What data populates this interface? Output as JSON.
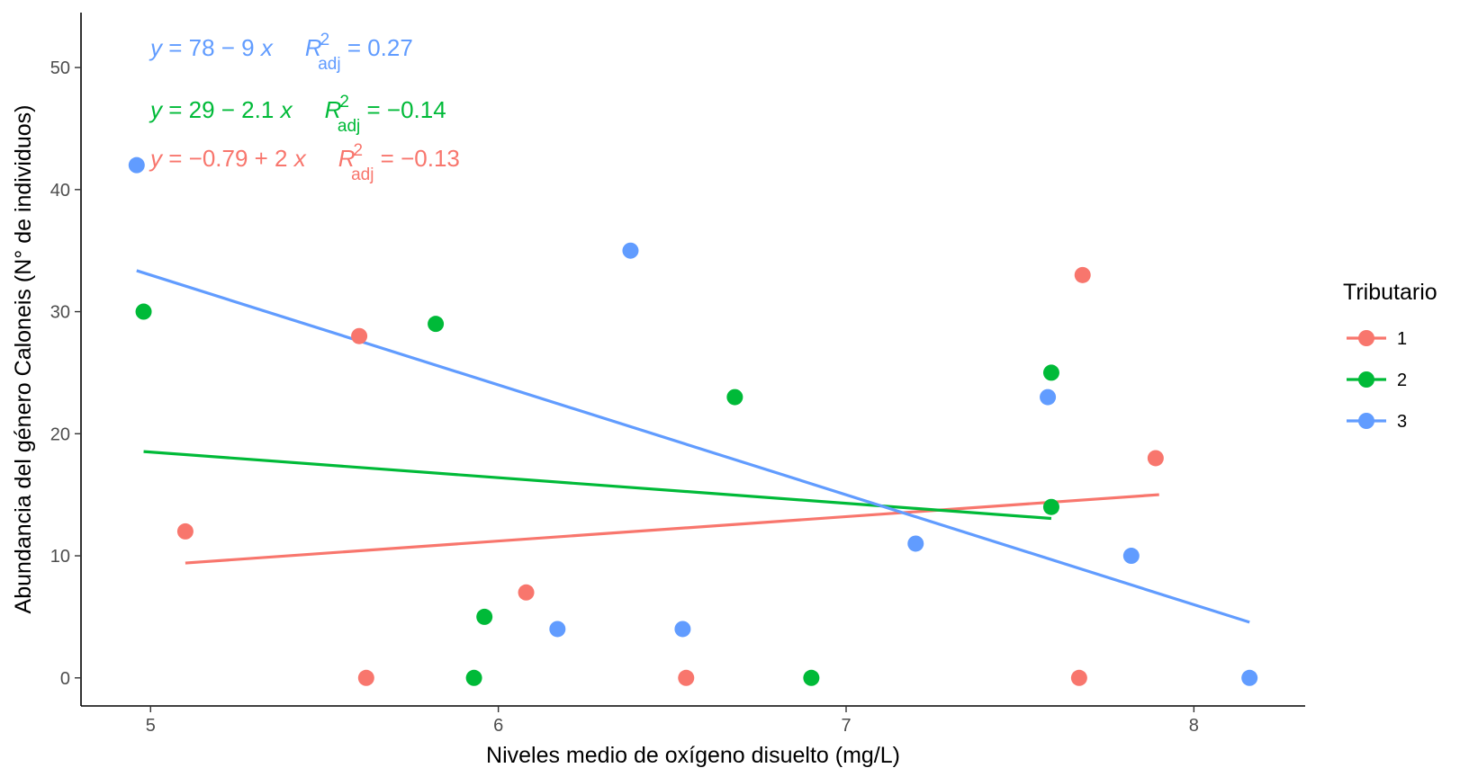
{
  "chart_data": {
    "type": "scatter",
    "xlabel": "Niveles medio de oxígeno disuelto (mg/L)",
    "ylabel": "Abundancia del género Caloneis (N° de individuos)",
    "xlim": [
      4.8,
      8.32
    ],
    "ylim": [
      -2.3,
      54.5
    ],
    "x_ticks": [
      5,
      6,
      7,
      8
    ],
    "y_ticks": [
      0,
      10,
      20,
      30,
      40,
      50
    ],
    "grid": false,
    "legend": {
      "title": "Tributario",
      "position": "right",
      "entries": [
        "1",
        "2",
        "3"
      ]
    },
    "series": [
      {
        "name": "1",
        "color": "#F8766D",
        "points": [
          [
            5.1,
            12
          ],
          [
            5.6,
            28
          ],
          [
            5.62,
            0
          ],
          [
            6.08,
            7
          ],
          [
            6.54,
            0
          ],
          [
            7.68,
            33
          ],
          [
            7.67,
            0
          ],
          [
            7.89,
            18
          ]
        ],
        "fit": {
          "x": [
            5.1,
            7.9
          ],
          "intercept": -0.79,
          "slope": 2
        },
        "equation": {
          "lhs": "y",
          "rhs": " = −0.79 + 2 ",
          "var": "x",
          "r2_symbol": "R",
          "r2_sup": "2",
          "r2_sub": "adj",
          "r2_value": " = −0.13"
        }
      },
      {
        "name": "2",
        "color": "#00BA38",
        "points": [
          [
            4.98,
            30
          ],
          [
            5.82,
            29
          ],
          [
            5.93,
            0
          ],
          [
            5.96,
            5
          ],
          [
            6.68,
            23
          ],
          [
            6.9,
            0
          ],
          [
            7.59,
            25
          ],
          [
            7.59,
            14
          ]
        ],
        "fit": {
          "x": [
            4.98,
            7.59
          ],
          "intercept": 29,
          "slope": -2.1
        },
        "equation": {
          "lhs": "y",
          "rhs": " = 29 − 2.1 ",
          "var": "x",
          "r2_symbol": "R",
          "r2_sup": "2",
          "r2_sub": "adj",
          "r2_value": " = −0.14"
        }
      },
      {
        "name": "3",
        "color": "#619CFF",
        "points": [
          [
            4.96,
            42
          ],
          [
            6.17,
            4
          ],
          [
            6.38,
            35
          ],
          [
            6.53,
            4
          ],
          [
            7.2,
            11
          ],
          [
            7.58,
            23
          ],
          [
            7.82,
            10
          ],
          [
            8.16,
            0
          ]
        ],
        "fit": {
          "x": [
            4.96,
            8.16
          ],
          "intercept": 78,
          "slope": -9
        },
        "equation": {
          "lhs": "y",
          "rhs": " = 78 − 9 ",
          "var": "x",
          "r2_symbol": "R",
          "r2_sup": "2",
          "r2_sub": "adj",
          "r2_value": " = 0.27"
        }
      }
    ],
    "equation_order": [
      "3",
      "2",
      "1"
    ]
  }
}
